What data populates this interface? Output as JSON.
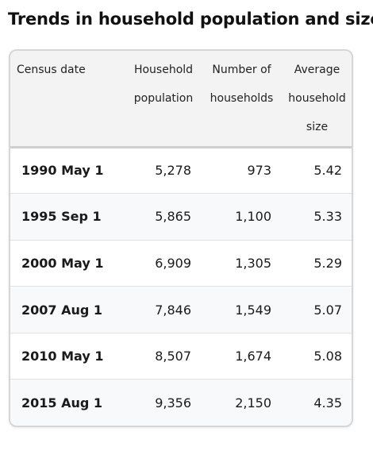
{
  "title": "Trends in household population and size",
  "table": {
    "headers": [
      {
        "line1": "Census date",
        "line2": "",
        "line3": ""
      },
      {
        "line1": "Household",
        "line2": "population",
        "line3": ""
      },
      {
        "line1": "Number of",
        "line2": "households",
        "line3": ""
      },
      {
        "line1": "Average",
        "line2": "household",
        "line3": "size"
      }
    ],
    "rows": [
      {
        "date": "1990 May 1",
        "population": "5,278",
        "households": "973",
        "size": "5.42"
      },
      {
        "date": "1995 Sep 1",
        "population": "5,865",
        "households": "1,100",
        "size": "5.33"
      },
      {
        "date": "2000 May 1",
        "population": "6,909",
        "households": "1,305",
        "size": "5.29"
      },
      {
        "date": "2007 Aug 1",
        "population": "7,846",
        "households": "1,549",
        "size": "5.07"
      },
      {
        "date": "2010 May 1",
        "population": "8,507",
        "households": "1,674",
        "size": "5.08"
      },
      {
        "date": "2015 Aug 1",
        "population": "9,356",
        "households": "2,150",
        "size": "4.35"
      }
    ]
  }
}
